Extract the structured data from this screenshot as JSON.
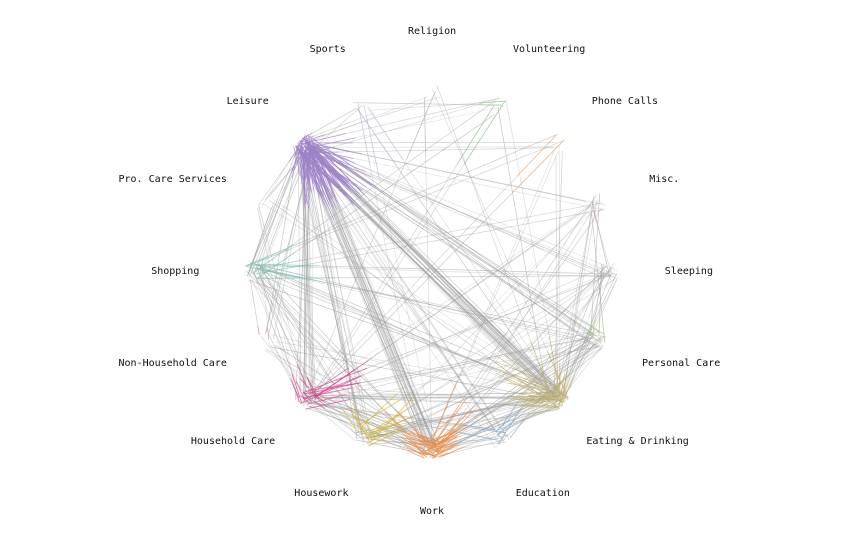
{
  "diagram": {
    "type": "network",
    "layout": "circular",
    "edge_color_default": "#9a9a9a",
    "nodes": [
      {
        "id": "religion",
        "label": "Religion",
        "color": "#b9b9b9"
      },
      {
        "id": "volunteering",
        "label": "Volunteering",
        "color": "#7fc97f"
      },
      {
        "id": "phone_calls",
        "label": "Phone Calls",
        "color": "#fdae6b"
      },
      {
        "id": "misc",
        "label": "Misc.",
        "color": "#f4a0b8"
      },
      {
        "id": "sleeping",
        "label": "Sleeping",
        "color": "#9ecae1"
      },
      {
        "id": "personal_care",
        "label": "Personal Care",
        "color": "#a6d96a"
      },
      {
        "id": "eating_drinking",
        "label": "Eating & Drinking",
        "color": "#c7b66a"
      },
      {
        "id": "education",
        "label": "Education",
        "color": "#6baed6"
      },
      {
        "id": "work",
        "label": "Work",
        "color": "#fd8d3c"
      },
      {
        "id": "housework",
        "label": "Housework",
        "color": "#e6c200"
      },
      {
        "id": "household_care",
        "label": "Household Care",
        "color": "#e7298a"
      },
      {
        "id": "non_household_care",
        "label": "Non-Household Care",
        "color": "#e377c2"
      },
      {
        "id": "shopping",
        "label": "Shopping",
        "color": "#80cdc1"
      },
      {
        "id": "pro_care_services",
        "label": "Pro. Care Services",
        "color": "#cccccc"
      },
      {
        "id": "leisure",
        "label": "Leisure",
        "color": "#9e7bd1"
      },
      {
        "id": "sports",
        "label": "Sports",
        "color": "#bcbddc"
      }
    ],
    "links": [
      {
        "source": "leisure",
        "target": "eating_drinking",
        "weight": 28
      },
      {
        "source": "leisure",
        "target": "work",
        "weight": 22
      },
      {
        "source": "leisure",
        "target": "household_care",
        "weight": 16
      },
      {
        "source": "leisure",
        "target": "housework",
        "weight": 12
      },
      {
        "source": "leisure",
        "target": "personal_care",
        "weight": 10
      },
      {
        "source": "leisure",
        "target": "shopping",
        "weight": 9
      },
      {
        "source": "leisure",
        "target": "education",
        "weight": 7
      },
      {
        "source": "leisure",
        "target": "sleeping",
        "weight": 5
      },
      {
        "source": "leisure",
        "target": "pro_care_services",
        "weight": 4
      },
      {
        "source": "leisure",
        "target": "non_household_care",
        "weight": 4
      },
      {
        "source": "leisure",
        "target": "misc",
        "weight": 3
      },
      {
        "source": "leisure",
        "target": "phone_calls",
        "weight": 3
      },
      {
        "source": "leisure",
        "target": "volunteering",
        "weight": 3
      },
      {
        "source": "leisure",
        "target": "religion",
        "weight": 2
      },
      {
        "source": "leisure",
        "target": "sports",
        "weight": 3
      },
      {
        "source": "work",
        "target": "eating_drinking",
        "weight": 14
      },
      {
        "source": "work",
        "target": "household_care",
        "weight": 12
      },
      {
        "source": "work",
        "target": "housework",
        "weight": 10
      },
      {
        "source": "work",
        "target": "personal_care",
        "weight": 8
      },
      {
        "source": "work",
        "target": "shopping",
        "weight": 6
      },
      {
        "source": "work",
        "target": "education",
        "weight": 6
      },
      {
        "source": "work",
        "target": "sleeping",
        "weight": 4
      },
      {
        "source": "work",
        "target": "non_household_care",
        "weight": 3
      },
      {
        "source": "work",
        "target": "phone_calls",
        "weight": 2
      },
      {
        "source": "work",
        "target": "misc",
        "weight": 3
      },
      {
        "source": "eating_drinking",
        "target": "household_care",
        "weight": 10
      },
      {
        "source": "eating_drinking",
        "target": "housework",
        "weight": 9
      },
      {
        "source": "eating_drinking",
        "target": "personal_care",
        "weight": 8
      },
      {
        "source": "eating_drinking",
        "target": "shopping",
        "weight": 7
      },
      {
        "source": "eating_drinking",
        "target": "sleeping",
        "weight": 5
      },
      {
        "source": "eating_drinking",
        "target": "education",
        "weight": 5
      },
      {
        "source": "eating_drinking",
        "target": "misc",
        "weight": 4
      },
      {
        "source": "eating_drinking",
        "target": "phone_calls",
        "weight": 3
      },
      {
        "source": "eating_drinking",
        "target": "volunteering",
        "weight": 2
      },
      {
        "source": "eating_drinking",
        "target": "pro_care_services",
        "weight": 3
      },
      {
        "source": "eating_drinking",
        "target": "non_household_care",
        "weight": 3
      },
      {
        "source": "eating_drinking",
        "target": "religion",
        "weight": 2
      },
      {
        "source": "household_care",
        "target": "housework",
        "weight": 6
      },
      {
        "source": "household_care",
        "target": "shopping",
        "weight": 6
      },
      {
        "source": "household_care",
        "target": "personal_care",
        "weight": 5
      },
      {
        "source": "household_care",
        "target": "misc",
        "weight": 3
      },
      {
        "source": "household_care",
        "target": "sleeping",
        "weight": 3
      },
      {
        "source": "household_care",
        "target": "non_household_care",
        "weight": 3
      },
      {
        "source": "housework",
        "target": "shopping",
        "weight": 5
      },
      {
        "source": "housework",
        "target": "personal_care",
        "weight": 4
      },
      {
        "source": "housework",
        "target": "sleeping",
        "weight": 3
      },
      {
        "source": "housework",
        "target": "misc",
        "weight": 2
      },
      {
        "source": "shopping",
        "target": "personal_care",
        "weight": 4
      },
      {
        "source": "shopping",
        "target": "pro_care_services",
        "weight": 3
      },
      {
        "source": "shopping",
        "target": "sleeping",
        "weight": 3
      },
      {
        "source": "shopping",
        "target": "misc",
        "weight": 2
      },
      {
        "source": "shopping",
        "target": "volunteering",
        "weight": 2
      },
      {
        "source": "shopping",
        "target": "phone_calls",
        "weight": 2
      },
      {
        "source": "personal_care",
        "target": "sleeping",
        "weight": 4
      },
      {
        "source": "personal_care",
        "target": "misc",
        "weight": 2
      },
      {
        "source": "education",
        "target": "personal_care",
        "weight": 3
      },
      {
        "source": "education",
        "target": "household_care",
        "weight": 3
      },
      {
        "source": "education",
        "target": "sleeping",
        "weight": 2
      },
      {
        "source": "volunteering",
        "target": "household_care",
        "weight": 2
      },
      {
        "source": "volunteering",
        "target": "sports",
        "weight": 2
      },
      {
        "source": "phone_calls",
        "target": "household_care",
        "weight": 2
      },
      {
        "source": "misc",
        "target": "sleeping",
        "weight": 2
      },
      {
        "source": "pro_care_services",
        "target": "household_care",
        "weight": 2
      },
      {
        "source": "non_household_care",
        "target": "shopping",
        "weight": 2
      },
      {
        "source": "sports",
        "target": "eating_drinking",
        "weight": 2
      },
      {
        "source": "sports",
        "target": "work",
        "weight": 2
      },
      {
        "source": "religion",
        "target": "household_care",
        "weight": 1
      },
      {
        "source": "religion",
        "target": "work",
        "weight": 1
      }
    ]
  }
}
